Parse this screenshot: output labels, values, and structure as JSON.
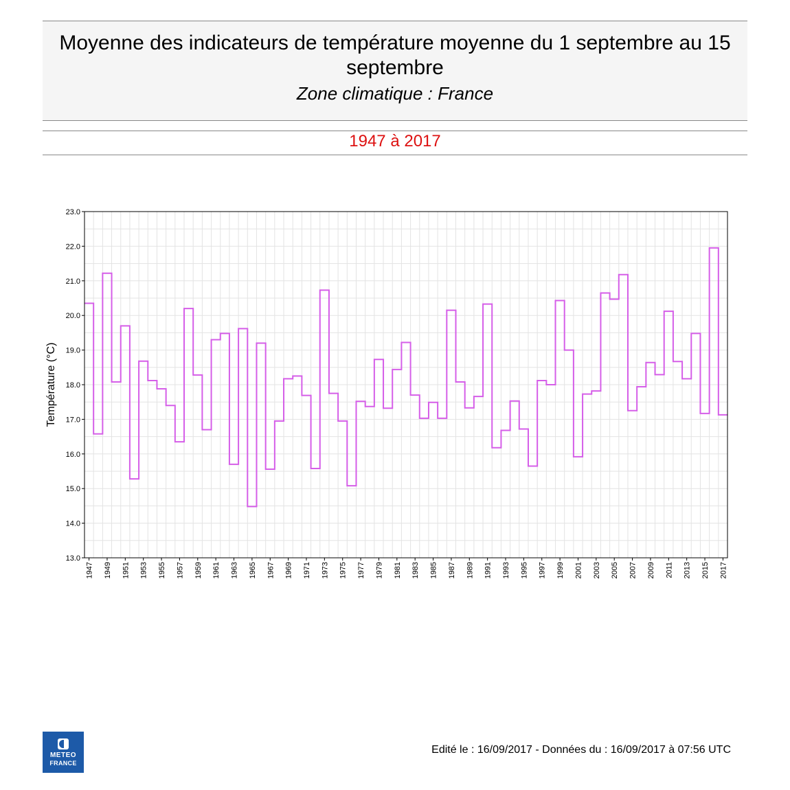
{
  "header": {
    "title": "Moyenne des indicateurs de température moyenne du 1 septembre au 15 septembre",
    "subtitle": "Zone climatique : France",
    "period": "1947 à 2017"
  },
  "chart_data": {
    "type": "line",
    "step": true,
    "title": "Moyenne des indicateurs de température moyenne du 1 septembre au 15 septembre",
    "xlabel": "",
    "ylabel": "Température (°C)",
    "ylim": [
      13.0,
      23.0
    ],
    "yticks": [
      "13.0",
      "14.0",
      "15.0",
      "16.0",
      "17.0",
      "18.0",
      "19.0",
      "20.0",
      "21.0",
      "22.0",
      "23.0"
    ],
    "x": [
      1947,
      1948,
      1949,
      1950,
      1951,
      1952,
      1953,
      1954,
      1955,
      1956,
      1957,
      1958,
      1959,
      1960,
      1961,
      1962,
      1963,
      1964,
      1965,
      1966,
      1967,
      1968,
      1969,
      1970,
      1971,
      1972,
      1973,
      1974,
      1975,
      1976,
      1977,
      1978,
      1979,
      1980,
      1981,
      1982,
      1983,
      1984,
      1985,
      1986,
      1987,
      1988,
      1989,
      1990,
      1991,
      1992,
      1993,
      1994,
      1995,
      1996,
      1997,
      1998,
      1999,
      2000,
      2001,
      2002,
      2003,
      2004,
      2005,
      2006,
      2007,
      2008,
      2009,
      2010,
      2011,
      2012,
      2013,
      2014,
      2015,
      2016,
      2017
    ],
    "xticks": [
      "1947",
      "1949",
      "1951",
      "1953",
      "1955",
      "1957",
      "1959",
      "1961",
      "1963",
      "1965",
      "1967",
      "1969",
      "1971",
      "1973",
      "1975",
      "1977",
      "1979",
      "1981",
      "1983",
      "1985",
      "1987",
      "1989",
      "1991",
      "1993",
      "1995",
      "1997",
      "1999",
      "2001",
      "2003",
      "2005",
      "2007",
      "2009",
      "2011",
      "2013",
      "2015",
      "2017"
    ],
    "series": [
      {
        "values": [
          20.35,
          16.58,
          21.22,
          18.08,
          19.7,
          15.28,
          18.68,
          18.12,
          17.88,
          17.4,
          16.35,
          20.2,
          18.28,
          16.7,
          19.3,
          19.48,
          15.7,
          19.62,
          14.48,
          19.2,
          15.56,
          16.95,
          18.17,
          18.25,
          17.69,
          15.58,
          20.73,
          17.75,
          16.95,
          15.08,
          17.52,
          17.37,
          18.73,
          17.32,
          18.44,
          19.22,
          17.7,
          17.03,
          17.49,
          17.03,
          20.15,
          18.08,
          17.33,
          17.66,
          20.33,
          16.18,
          16.68,
          17.53,
          16.72,
          15.65,
          18.12,
          18.0,
          20.43,
          19.0,
          15.92,
          17.73,
          17.82,
          20.65,
          20.47,
          21.18,
          17.25,
          17.94,
          18.64,
          18.29,
          20.12,
          18.67,
          18.17,
          19.48,
          17.17,
          21.95,
          17.13
        ]
      }
    ],
    "grid": true,
    "line_color": "#d55ee8"
  },
  "footer": {
    "edition": "Edité le : 16/09/2017 - Données du : 16/09/2017 à 07:56 UTC",
    "logo_line1": "METEO",
    "logo_line2": "FRANCE"
  }
}
